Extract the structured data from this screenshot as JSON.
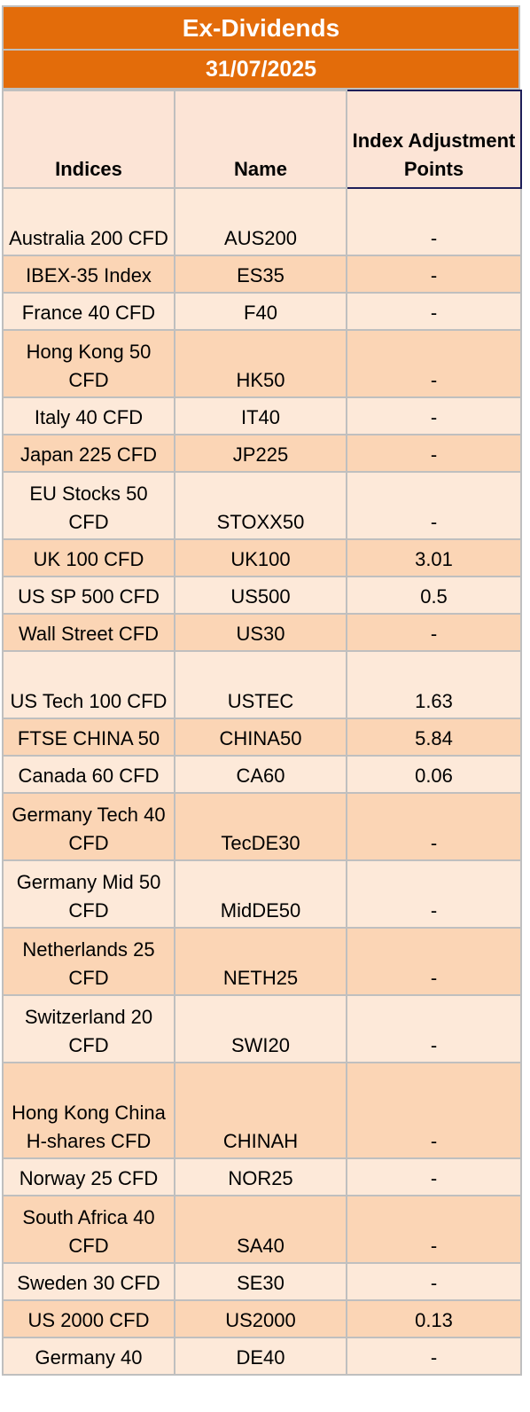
{
  "title": "Ex-Dividends",
  "date": "31/07/2025",
  "headers": {
    "indices": "Indices",
    "name": "Name",
    "adjustment": "Index Adjustment Points"
  },
  "rows": [
    {
      "index": "Australia 200 CFD",
      "name": "AUS200",
      "points": "-"
    },
    {
      "index": "IBEX-35 Index",
      "name": "ES35",
      "points": "-"
    },
    {
      "index": "France 40 CFD",
      "name": "F40",
      "points": "-"
    },
    {
      "index": "Hong Kong 50 CFD",
      "name": "HK50",
      "points": "-"
    },
    {
      "index": "Italy 40 CFD",
      "name": "IT40",
      "points": "-"
    },
    {
      "index": "Japan 225 CFD",
      "name": "JP225",
      "points": "-"
    },
    {
      "index": "EU Stocks 50 CFD",
      "name": "STOXX50",
      "points": "-"
    },
    {
      "index": "UK 100 CFD",
      "name": "UK100",
      "points": "3.01"
    },
    {
      "index": "US SP 500 CFD",
      "name": "US500",
      "points": "0.5"
    },
    {
      "index": "Wall Street CFD",
      "name": "US30",
      "points": "-"
    },
    {
      "index": "US Tech 100 CFD",
      "name": "USTEC",
      "points": "1.63"
    },
    {
      "index": "FTSE CHINA 50",
      "name": "CHINA50",
      "points": "5.84"
    },
    {
      "index": "Canada 60 CFD",
      "name": "CA60",
      "points": "0.06"
    },
    {
      "index": "Germany Tech 40 CFD",
      "name": "TecDE30",
      "points": "-"
    },
    {
      "index": "Germany Mid 50 CFD",
      "name": "MidDE50",
      "points": "-"
    },
    {
      "index": "Netherlands 25 CFD",
      "name": "NETH25",
      "points": "-"
    },
    {
      "index": "Switzerland 20 CFD",
      "name": "SWI20",
      "points": "-"
    },
    {
      "index": "Hong Kong China H-shares CFD",
      "name": "CHINAH",
      "points": "-"
    },
    {
      "index": "Norway 25 CFD",
      "name": "NOR25",
      "points": "-"
    },
    {
      "index": "South Africa 40 CFD",
      "name": "SA40",
      "points": "-"
    },
    {
      "index": "Sweden 30 CFD",
      "name": "SE30",
      "points": "-"
    },
    {
      "index": "US 2000 CFD",
      "name": "US2000",
      "points": "0.13"
    },
    {
      "index": "Germany 40",
      "name": "DE40",
      "points": "-"
    }
  ]
}
